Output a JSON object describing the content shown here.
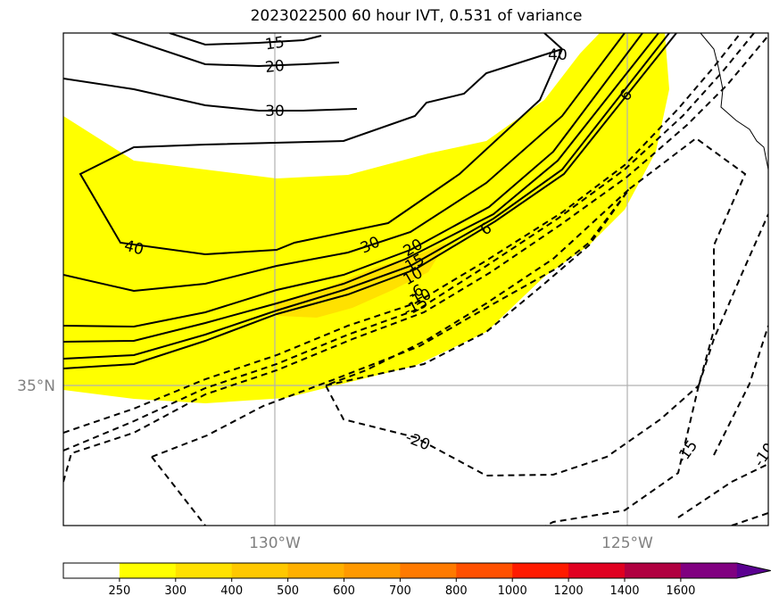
{
  "title": "2023022500 60 hour IVT, 0.531 of variance",
  "axes": {
    "lat_labels": [
      "35°N"
    ],
    "lon_labels": [
      "130°W",
      "125°W"
    ]
  },
  "colorbar": {
    "levels": [
      "250",
      "300",
      "400",
      "500",
      "600",
      "700",
      "800",
      "1000",
      "1200",
      "1400",
      "1600"
    ],
    "colors": [
      "#ffffff",
      "#ffff00",
      "#ffe100",
      "#ffc800",
      "#ffb000",
      "#ff9900",
      "#ff7a00",
      "#ff5000",
      "#ff1a00",
      "#e00020",
      "#b00040",
      "#800080",
      "#5a0090"
    ],
    "extend": "max"
  },
  "contour_labels": {
    "positive": [
      "15",
      "20",
      "30",
      "40",
      "40",
      "30",
      "20",
      "15",
      "10",
      "6",
      "6"
    ],
    "negative": [
      "-6",
      "-10",
      "-15",
      "-20",
      "-15",
      "-10",
      "-6"
    ]
  }
}
